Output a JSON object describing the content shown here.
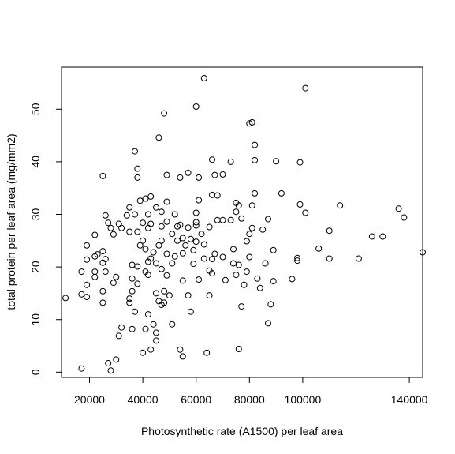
{
  "chart_data": {
    "type": "scatter",
    "title": "",
    "xlabel": "Photosynthetic rate (A1500) per leaf area",
    "ylabel": "total protein per leaf area (mg/mm2)",
    "xlim": [
      9500,
      145000
    ],
    "ylim": [
      -1,
      58
    ],
    "x_ticks": [
      20000,
      40000,
      60000,
      80000,
      100000,
      140000
    ],
    "x_tick_labels": [
      "20000",
      "40000",
      "60000",
      "80000",
      "100000",
      "140000"
    ],
    "y_ticks": [
      0,
      10,
      20,
      30,
      40,
      50
    ],
    "y_tick_labels": [
      "0",
      "10",
      "20",
      "30",
      "40",
      "50"
    ],
    "grid": false,
    "marker": "open-circle",
    "points": [
      [
        17000,
        0.7
      ],
      [
        28000,
        0.3
      ],
      [
        27000,
        1.7
      ],
      [
        30000,
        2.4
      ],
      [
        55000,
        3.0
      ],
      [
        64000,
        3.7
      ],
      [
        40000,
        3.7
      ],
      [
        43000,
        4.3
      ],
      [
        54000,
        4.3
      ],
      [
        76000,
        4.4
      ],
      [
        45000,
        6.0
      ],
      [
        31000,
        6.9
      ],
      [
        45000,
        7.5
      ],
      [
        36000,
        8.2
      ],
      [
        41000,
        8.2
      ],
      [
        32000,
        8.5
      ],
      [
        44000,
        9.1
      ],
      [
        51000,
        9.1
      ],
      [
        87000,
        9.3
      ],
      [
        42000,
        11.0
      ],
      [
        37000,
        11.5
      ],
      [
        58000,
        11.5
      ],
      [
        77000,
        12.5
      ],
      [
        88000,
        12.9
      ],
      [
        46000,
        13.5
      ],
      [
        35000,
        13.2
      ],
      [
        25000,
        13.2
      ],
      [
        48000,
        13.2
      ],
      [
        47000,
        12.8
      ],
      [
        11000,
        14.1
      ],
      [
        17000,
        14.8
      ],
      [
        19000,
        14.3
      ],
      [
        35000,
        14.0
      ],
      [
        45000,
        15.0
      ],
      [
        50000,
        14.6
      ],
      [
        57000,
        14.6
      ],
      [
        65000,
        14.6
      ],
      [
        25000,
        15.4
      ],
      [
        36000,
        15.4
      ],
      [
        48000,
        15.4
      ],
      [
        84000,
        16.0
      ],
      [
        78000,
        16.6
      ],
      [
        19000,
        16.6
      ],
      [
        38000,
        16.8
      ],
      [
        29000,
        17.0
      ],
      [
        55000,
        17.4
      ],
      [
        36000,
        17.8
      ],
      [
        30000,
        18.1
      ],
      [
        22000,
        18.1
      ],
      [
        49000,
        18.4
      ],
      [
        42000,
        18.5
      ],
      [
        61000,
        17.6
      ],
      [
        66000,
        18.8
      ],
      [
        71000,
        17.5
      ],
      [
        75000,
        18.5
      ],
      [
        83000,
        17.8
      ],
      [
        89000,
        17.3
      ],
      [
        96000,
        17.7
      ],
      [
        17000,
        19.1
      ],
      [
        22000,
        19.1
      ],
      [
        26000,
        19.1
      ],
      [
        41000,
        19.1
      ],
      [
        79000,
        19.1
      ],
      [
        47000,
        19.6
      ],
      [
        65000,
        19.3
      ],
      [
        38000,
        20.1
      ],
      [
        36000,
        20.4
      ],
      [
        45000,
        20.7
      ],
      [
        51000,
        20.7
      ],
      [
        59000,
        20.6
      ],
      [
        74000,
        20.7
      ],
      [
        76000,
        20.4
      ],
      [
        86000,
        20.7
      ],
      [
        98000,
        21.2
      ],
      [
        98000,
        21.7
      ],
      [
        25000,
        20.8
      ],
      [
        26000,
        21.5
      ],
      [
        19000,
        21.4
      ],
      [
        22000,
        22.0
      ],
      [
        42000,
        21.0
      ],
      [
        43000,
        21.6
      ],
      [
        52000,
        22.0
      ],
      [
        63000,
        21.6
      ],
      [
        66000,
        21.5
      ],
      [
        70000,
        21.9
      ],
      [
        80000,
        21.9
      ],
      [
        110000,
        21.6
      ],
      [
        121000,
        21.6
      ],
      [
        145000,
        22.8
      ],
      [
        23000,
        22.4
      ],
      [
        25000,
        23.0
      ],
      [
        44000,
        22.8
      ],
      [
        49000,
        22.5
      ],
      [
        55000,
        22.6
      ],
      [
        59000,
        23.2
      ],
      [
        67000,
        22.5
      ],
      [
        74000,
        23.4
      ],
      [
        89000,
        23.2
      ],
      [
        106000,
        23.5
      ],
      [
        41000,
        23.4
      ],
      [
        46000,
        24.1
      ],
      [
        19000,
        24.1
      ],
      [
        39000,
        24.1
      ],
      [
        56000,
        24.1
      ],
      [
        63000,
        24.3
      ],
      [
        60000,
        24.8
      ],
      [
        40000,
        25.0
      ],
      [
        47000,
        25.0
      ],
      [
        53000,
        25.0
      ],
      [
        55000,
        25.5
      ],
      [
        58000,
        25.3
      ],
      [
        79000,
        24.9
      ],
      [
        126000,
        25.8
      ],
      [
        130000,
        25.8
      ],
      [
        29000,
        26.2
      ],
      [
        35000,
        26.7
      ],
      [
        38000,
        26.7
      ],
      [
        22000,
        26.1
      ],
      [
        51000,
        26.3
      ],
      [
        62000,
        26.3
      ],
      [
        80000,
        26.3
      ],
      [
        110000,
        26.9
      ],
      [
        28000,
        27.4
      ],
      [
        32000,
        27.4
      ],
      [
        42000,
        27.4
      ],
      [
        47000,
        27.7
      ],
      [
        53000,
        27.7
      ],
      [
        57000,
        27.5
      ],
      [
        60000,
        27.9
      ],
      [
        65000,
        27.6
      ],
      [
        81000,
        27.4
      ],
      [
        85000,
        27.1
      ],
      [
        27000,
        28.4
      ],
      [
        31000,
        28.2
      ],
      [
        40000,
        28.4
      ],
      [
        43000,
        28.2
      ],
      [
        49000,
        28.6
      ],
      [
        54000,
        28.0
      ],
      [
        60000,
        28.5
      ],
      [
        68000,
        28.9
      ],
      [
        70000,
        28.9
      ],
      [
        73000,
        28.9
      ],
      [
        77000,
        29.2
      ],
      [
        87000,
        29.1
      ],
      [
        138000,
        29.4
      ],
      [
        26000,
        29.8
      ],
      [
        34000,
        29.8
      ],
      [
        37000,
        30.0
      ],
      [
        42000,
        30.0
      ],
      [
        47000,
        30.5
      ],
      [
        52000,
        30.0
      ],
      [
        60000,
        30.3
      ],
      [
        75000,
        30.5
      ],
      [
        101000,
        30.3
      ],
      [
        136000,
        31.1
      ],
      [
        35000,
        31.3
      ],
      [
        45000,
        31.3
      ],
      [
        76000,
        31.7
      ],
      [
        81000,
        31.7
      ],
      [
        99000,
        31.9
      ],
      [
        114000,
        31.7
      ],
      [
        39000,
        32.6
      ],
      [
        41000,
        33.0
      ],
      [
        49000,
        32.4
      ],
      [
        61000,
        32.7
      ],
      [
        75000,
        32.2
      ],
      [
        43000,
        33.4
      ],
      [
        66000,
        33.7
      ],
      [
        68000,
        33.6
      ],
      [
        82000,
        34.0
      ],
      [
        92000,
        34.0
      ],
      [
        38000,
        37.0
      ],
      [
        54000,
        37.0
      ],
      [
        61000,
        37.0
      ],
      [
        67000,
        37.5
      ],
      [
        70000,
        37.6
      ],
      [
        25000,
        37.3
      ],
      [
        49000,
        37.5
      ],
      [
        57000,
        37.9
      ],
      [
        38000,
        38.7
      ],
      [
        73000,
        40.0
      ],
      [
        90000,
        40.1
      ],
      [
        99000,
        39.9
      ],
      [
        66000,
        40.4
      ],
      [
        82000,
        40.3
      ],
      [
        37000,
        42.0
      ],
      [
        82000,
        43.2
      ],
      [
        46000,
        44.6
      ],
      [
        80000,
        47.3
      ],
      [
        81000,
        47.5
      ],
      [
        48000,
        49.2
      ],
      [
        60000,
        50.5
      ],
      [
        101000,
        54.0
      ],
      [
        63000,
        55.9
      ]
    ]
  }
}
